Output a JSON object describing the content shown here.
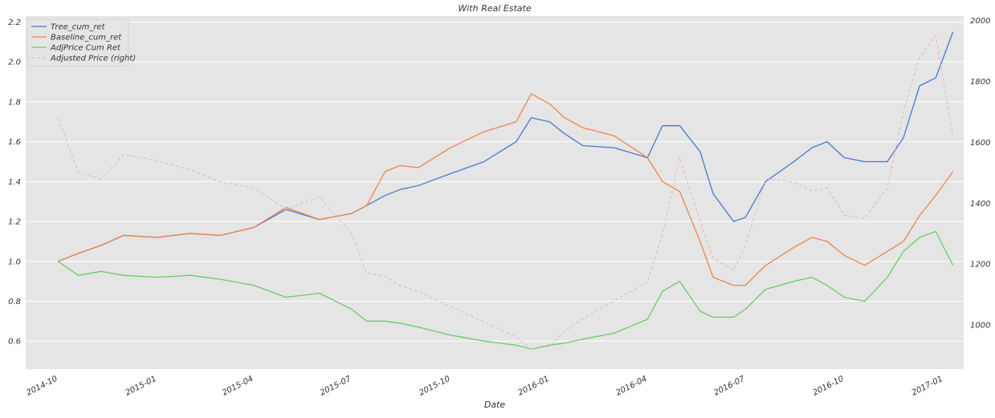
{
  "chart_data": {
    "type": "line",
    "title": "With Real Estate",
    "xlabel": "Date",
    "ylabel": "",
    "ylabel_right": "",
    "xlim": [
      "2014-09-01",
      "2017-01-20"
    ],
    "ylim": [
      0.46,
      2.23
    ],
    "ylim_right": [
      855,
      2015
    ],
    "xticks": [
      "2014-10",
      "2015-01",
      "2015-04",
      "2015-07",
      "2015-10",
      "2016-01",
      "2016-04",
      "2016-07",
      "2016-10",
      "2017-01"
    ],
    "yticks": [
      "0.6",
      "0.8",
      "1.0",
      "1.2",
      "1.4",
      "1.6",
      "1.8",
      "2.0",
      "2.2"
    ],
    "yticks_right": [
      "1000",
      "1200",
      "1400",
      "1600",
      "1800",
      "2000"
    ],
    "grid": true,
    "legend_position": "top-left",
    "series": [
      {
        "name": "Tree_cum_ret",
        "color": "#4878cf",
        "dash": "solid",
        "axis": "left",
        "x": [
          "2014-10-01",
          "2014-10-20",
          "2014-11-10",
          "2014-12-01",
          "2015-01-01",
          "2015-02-01",
          "2015-03-01",
          "2015-04-01",
          "2015-05-01",
          "2015-06-01",
          "2015-07-01",
          "2015-07-15",
          "2015-08-01",
          "2015-08-15",
          "2015-09-01",
          "2015-10-01",
          "2015-11-01",
          "2015-12-01",
          "2015-12-15",
          "2016-01-01",
          "2016-01-15",
          "2016-02-01",
          "2016-03-01",
          "2016-04-01",
          "2016-04-15",
          "2016-05-01",
          "2016-05-20",
          "2016-06-01",
          "2016-06-20",
          "2016-07-01",
          "2016-07-20",
          "2016-08-15",
          "2016-09-01",
          "2016-09-15",
          "2016-10-01",
          "2016-10-20",
          "2016-11-10",
          "2016-11-25",
          "2016-12-10",
          "2016-12-25",
          "2017-01-10"
        ],
        "y": [
          1.0,
          1.04,
          1.08,
          1.13,
          1.12,
          1.14,
          1.13,
          1.17,
          1.26,
          1.21,
          1.24,
          1.28,
          1.33,
          1.36,
          1.38,
          1.44,
          1.5,
          1.6,
          1.72,
          1.7,
          1.64,
          1.58,
          1.57,
          1.52,
          1.68,
          1.68,
          1.55,
          1.34,
          1.2,
          1.22,
          1.4,
          1.5,
          1.57,
          1.6,
          1.52,
          1.5,
          1.5,
          1.62,
          1.88,
          1.92,
          2.15
        ]
      },
      {
        "name": "Baseline_cum_ret",
        "color": "#ee854a",
        "dash": "solid",
        "axis": "left",
        "x": [
          "2014-10-01",
          "2014-10-20",
          "2014-11-10",
          "2014-12-01",
          "2015-01-01",
          "2015-02-01",
          "2015-03-01",
          "2015-04-01",
          "2015-05-01",
          "2015-06-01",
          "2015-07-01",
          "2015-07-15",
          "2015-08-01",
          "2015-08-15",
          "2015-09-01",
          "2015-10-01",
          "2015-11-01",
          "2015-12-01",
          "2015-12-15",
          "2016-01-01",
          "2016-01-15",
          "2016-02-01",
          "2016-03-01",
          "2016-04-01",
          "2016-04-15",
          "2016-05-01",
          "2016-05-20",
          "2016-06-01",
          "2016-06-20",
          "2016-07-01",
          "2016-07-20",
          "2016-08-15",
          "2016-09-01",
          "2016-09-15",
          "2016-10-01",
          "2016-10-20",
          "2016-11-10",
          "2016-11-25",
          "2016-12-10",
          "2016-12-25",
          "2017-01-10"
        ],
        "y": [
          1.0,
          1.04,
          1.08,
          1.13,
          1.12,
          1.14,
          1.13,
          1.17,
          1.27,
          1.21,
          1.24,
          1.28,
          1.45,
          1.48,
          1.47,
          1.57,
          1.65,
          1.7,
          1.84,
          1.79,
          1.72,
          1.67,
          1.63,
          1.52,
          1.4,
          1.35,
          1.1,
          0.92,
          0.88,
          0.88,
          0.98,
          1.07,
          1.12,
          1.1,
          1.03,
          0.98,
          1.05,
          1.1,
          1.23,
          1.33,
          1.45
        ]
      },
      {
        "name": "AdjPrice Cum Ret",
        "color": "#6acc65",
        "dash": "solid",
        "axis": "left",
        "x": [
          "2014-10-01",
          "2014-10-20",
          "2014-11-10",
          "2014-12-01",
          "2015-01-01",
          "2015-02-01",
          "2015-03-01",
          "2015-04-01",
          "2015-05-01",
          "2015-06-01",
          "2015-07-01",
          "2015-07-15",
          "2015-08-01",
          "2015-08-15",
          "2015-09-01",
          "2015-10-01",
          "2015-11-01",
          "2015-12-01",
          "2015-12-15",
          "2016-01-01",
          "2016-01-15",
          "2016-02-01",
          "2016-03-01",
          "2016-04-01",
          "2016-04-15",
          "2016-05-01",
          "2016-05-20",
          "2016-06-01",
          "2016-06-20",
          "2016-07-01",
          "2016-07-20",
          "2016-08-15",
          "2016-09-01",
          "2016-09-15",
          "2016-10-01",
          "2016-10-20",
          "2016-11-10",
          "2016-11-25",
          "2016-12-10",
          "2016-12-25",
          "2017-01-10"
        ],
        "y": [
          1.0,
          0.93,
          0.95,
          0.93,
          0.92,
          0.93,
          0.91,
          0.88,
          0.82,
          0.84,
          0.76,
          0.7,
          0.7,
          0.69,
          0.67,
          0.63,
          0.6,
          0.58,
          0.56,
          0.58,
          0.59,
          0.61,
          0.64,
          0.71,
          0.85,
          0.9,
          0.75,
          0.72,
          0.72,
          0.76,
          0.86,
          0.9,
          0.92,
          0.88,
          0.82,
          0.8,
          0.92,
          1.05,
          1.12,
          1.15,
          0.98
        ]
      },
      {
        "name": "Adjusted Price (right)",
        "color": "#e8b4b4",
        "dash": "dashed",
        "axis": "right",
        "x": [
          "2014-10-01",
          "2014-10-20",
          "2014-11-10",
          "2014-12-01",
          "2015-01-01",
          "2015-02-01",
          "2015-03-01",
          "2015-04-01",
          "2015-05-01",
          "2015-06-01",
          "2015-07-01",
          "2015-07-15",
          "2015-08-01",
          "2015-08-15",
          "2015-09-01",
          "2015-10-01",
          "2015-11-01",
          "2015-12-01",
          "2015-12-15",
          "2016-01-01",
          "2016-01-15",
          "2016-02-01",
          "2016-03-01",
          "2016-04-01",
          "2016-04-15",
          "2016-05-01",
          "2016-05-20",
          "2016-06-01",
          "2016-06-20",
          "2016-07-01",
          "2016-07-20",
          "2016-08-15",
          "2016-09-01",
          "2016-09-15",
          "2016-10-01",
          "2016-10-20",
          "2016-11-10",
          "2016-11-25",
          "2016-12-10",
          "2016-12-25",
          "2017-01-10"
        ],
        "y": [
          1680,
          1500,
          1480,
          1560,
          1540,
          1510,
          1470,
          1450,
          1380,
          1420,
          1300,
          1170,
          1160,
          1130,
          1110,
          1060,
          1010,
          960,
          920,
          930,
          980,
          1020,
          1080,
          1140,
          1300,
          1550,
          1340,
          1220,
          1180,
          1260,
          1480,
          1470,
          1440,
          1450,
          1360,
          1350,
          1450,
          1700,
          1880,
          1950,
          1620
        ]
      }
    ]
  }
}
